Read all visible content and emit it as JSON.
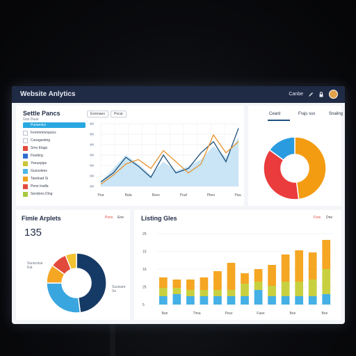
{
  "app": {
    "title": "Website Anlytics"
  },
  "titlebar": {
    "right_label": "Canbe"
  },
  "top_left": {
    "title": "Settle Pancs",
    "subtitle": "Gon Duse",
    "filters": [
      "Exmnaes",
      "Pecar"
    ],
    "sidebar": [
      {
        "label": "Pumenlcs",
        "color": "#29a8e0",
        "active": true
      },
      {
        "label": "Femmmtvnpuics",
        "color": "#ffffff",
        "active": false
      },
      {
        "label": "Cunagesting",
        "color": "#ffffff",
        "active": false
      },
      {
        "label": "Smo Elags",
        "color": "#e24a3c",
        "active": false
      },
      {
        "label": "Fisebirg",
        "color": "#2f6fd0",
        "active": false
      },
      {
        "label": "Yoeuepips",
        "color": "#c9c43a",
        "active": false
      },
      {
        "label": "Gunsolees",
        "color": "#4cb7e8",
        "active": false
      },
      {
        "label": "Taedoad Si",
        "color": "#f0a21f",
        "active": false
      },
      {
        "label": "Pene tradla",
        "color": "#e24a3c",
        "active": false
      },
      {
        "label": "Sendons Ding",
        "color": "#a6c940",
        "active": false
      }
    ],
    "x_ticks": [
      "Pea",
      "Bala",
      "Bsos",
      "Poaf",
      "Pbes",
      "Pasz"
    ]
  },
  "top_right": {
    "tabs": [
      "Ceard",
      "Frajs sus",
      "Snaling"
    ],
    "chart_data": {
      "type": "pie",
      "labels": [
        "Orange",
        "Red",
        "Blue"
      ],
      "values": [
        48,
        37,
        15
      ],
      "colors": [
        "#f39c12",
        "#ea3c3c",
        "#2b9be0"
      ]
    }
  },
  "bottom_left": {
    "title": "Fimle Arplets",
    "metric": "135",
    "legend_left": "Pons",
    "legend_right": "Ene",
    "callout_left": "Suranslue\nKat",
    "callout_right": "Suosiant\nSe",
    "chart_data": {
      "type": "pie",
      "labels": [
        "Navy",
        "Blue",
        "Orange",
        "Red",
        "Yellow"
      ],
      "values": [
        48,
        27,
        10,
        9,
        6
      ],
      "colors": [
        "#163a66",
        "#3aa6e0",
        "#f5a623",
        "#e24a3c",
        "#f2c230"
      ]
    }
  },
  "bottom_right": {
    "title": "Listing Gles",
    "legend_left": "Fore",
    "legend_right": "Dne",
    "y_ticks": [
      "25",
      "15",
      "16",
      "25",
      "5"
    ],
    "x_ticks": [
      "Ban",
      "Tlma",
      "Pesz",
      "Faee",
      "Bee",
      "Bee"
    ],
    "chart_data": {
      "type": "bar",
      "categories": [
        "1",
        "2",
        "3",
        "4",
        "5",
        "6",
        "7",
        "8",
        "9",
        "10",
        "11",
        "12",
        "13"
      ],
      "series": [
        {
          "name": "Blue",
          "values": [
            4,
            5,
            4,
            4,
            4,
            4,
            4,
            7,
            4,
            4,
            4,
            4,
            5
          ]
        },
        {
          "name": "Yellow",
          "values": [
            4,
            3,
            3,
            3,
            3,
            3,
            6,
            4,
            5,
            7,
            7,
            8,
            12
          ]
        },
        {
          "name": "Orange",
          "values": [
            5,
            4,
            5,
            6,
            9,
            13,
            5,
            6,
            10,
            13,
            15,
            13,
            14
          ]
        }
      ],
      "colors": [
        "#44b0e6",
        "#c8d040",
        "#f5a623"
      ],
      "ylim": [
        0,
        34
      ]
    }
  },
  "line_chart": {
    "chart_data": {
      "type": "area",
      "x": [
        1,
        2,
        3,
        4,
        5,
        6,
        7,
        8,
        9,
        10,
        11,
        12
      ],
      "series": [
        {
          "name": "Area",
          "values": [
            2,
            8,
            14,
            10,
            5,
            11,
            7,
            9,
            12,
            18,
            13,
            22
          ]
        },
        {
          "name": "Navy",
          "values": [
            2,
            6,
            13,
            9,
            4,
            14,
            6,
            8,
            15,
            20,
            11,
            26
          ]
        },
        {
          "name": "Orange",
          "values": [
            1,
            5,
            10,
            12,
            8,
            16,
            11,
            6,
            10,
            23,
            15,
            20
          ]
        }
      ],
      "ylim": [
        0,
        28
      ]
    }
  }
}
